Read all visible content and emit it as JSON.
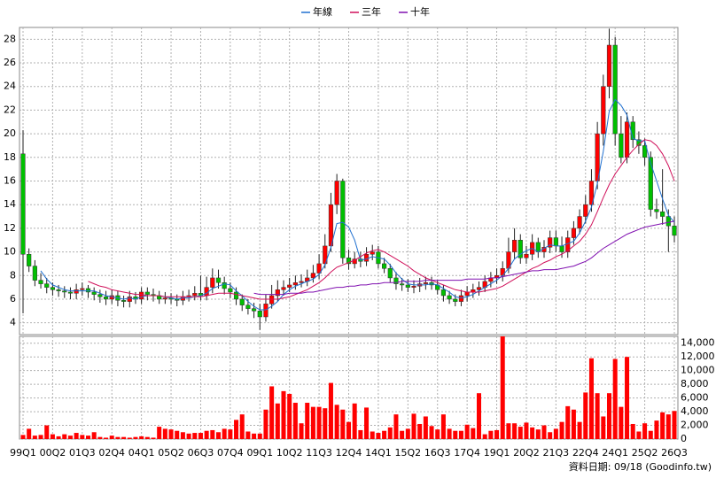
{
  "chart_data": {
    "type": "candlestick",
    "categories": [
      "99Q1",
      null,
      null,
      null,
      null,
      "00Q2",
      null,
      null,
      null,
      null,
      "01Q3",
      null,
      null,
      null,
      null,
      "02Q4",
      null,
      null,
      null,
      null,
      "04Q1",
      null,
      null,
      null,
      null,
      "05Q2",
      null,
      null,
      null,
      null,
      "06Q3",
      null,
      null,
      null,
      null,
      "07Q4",
      null,
      null,
      null,
      null,
      "09Q1",
      null,
      null,
      null,
      null,
      "10Q2",
      null,
      null,
      null,
      null,
      "11Q3",
      null,
      null,
      null,
      null,
      "12Q4",
      null,
      null,
      null,
      null,
      "14Q1",
      null,
      null,
      null,
      null,
      "15Q2",
      null,
      null,
      null,
      null,
      "16Q3",
      null,
      null,
      null,
      null,
      "17Q4",
      null,
      null,
      null,
      null,
      "19Q1",
      null,
      null,
      null,
      null,
      "20Q2",
      null,
      null,
      null,
      null,
      "21Q3",
      null,
      null,
      null,
      null,
      "22Q4",
      null,
      null,
      null,
      null,
      "24Q1",
      null,
      null,
      null,
      null,
      "25Q2",
      null,
      null,
      null,
      null,
      "26Q3"
    ],
    "open": [
      18.3,
      9.8,
      8.8,
      7.6,
      7.3,
      7.0,
      6.8,
      6.7,
      6.6,
      6.5,
      6.8,
      6.9,
      6.6,
      6.4,
      6.2,
      6.0,
      6.3,
      5.9,
      5.8,
      6.2,
      6.0,
      6.6,
      6.4,
      6.3,
      6.0,
      6.1,
      6.0,
      5.9,
      6.2,
      6.3,
      6.5,
      6.3,
      7.0,
      7.8,
      7.4,
      6.9,
      6.6,
      6.0,
      5.5,
      5.2,
      5.0,
      4.5,
      5.6,
      6.3,
      6.8,
      7.0,
      7.2,
      7.4,
      7.5,
      7.8,
      8.2,
      9.0,
      10.5,
      14.0,
      16.0,
      9.5,
      9.0,
      9.4,
      9.2,
      9.8,
      10.0,
      9.0,
      8.6,
      7.8,
      7.3,
      7.2,
      7.0,
      7.1,
      7.3,
      7.4,
      7.2,
      6.8,
      6.3,
      6.0,
      5.8,
      6.3,
      6.6,
      6.8,
      7.0,
      7.5,
      7.8,
      8.0,
      8.6,
      10.0,
      11.0,
      9.5,
      9.8,
      10.8,
      10.0,
      10.4,
      11.2,
      10.5,
      10.0,
      11.2,
      12.0,
      13.0,
      14.0,
      16.0,
      20.0,
      24.0,
      27.5,
      20.0,
      18.0,
      21.0,
      19.5,
      19.0,
      18.0,
      13.6,
      13.4,
      13.0,
      12.2
    ],
    "high": [
      20.3,
      10.3,
      9.3,
      8.2,
      7.8,
      7.4,
      7.2,
      7.1,
      7.0,
      7.3,
      7.4,
      7.2,
      7.0,
      6.8,
      6.7,
      6.8,
      6.7,
      6.3,
      6.7,
      6.6,
      7.0,
      7.0,
      6.9,
      6.7,
      6.6,
      6.5,
      6.4,
      6.7,
      6.8,
      7.1,
      8.0,
      7.9,
      8.6,
      8.5,
      7.9,
      7.4,
      7.0,
      6.4,
      6.0,
      5.7,
      5.6,
      6.4,
      7.2,
      7.6,
      7.6,
      7.8,
      8.0,
      8.1,
      8.5,
      8.9,
      9.8,
      11.5,
      15.0,
      16.6,
      16.2,
      10.2,
      10.0,
      10.0,
      10.4,
      10.6,
      10.5,
      9.5,
      9.0,
      8.3,
      7.8,
      7.7,
      7.6,
      7.8,
      7.9,
      7.9,
      7.6,
      7.2,
      6.7,
      6.4,
      6.8,
      7.1,
      7.3,
      7.5,
      8.0,
      8.3,
      8.6,
      9.2,
      11.2,
      12.0,
      11.5,
      10.5,
      11.5,
      11.2,
      11.0,
      11.8,
      11.8,
      11.3,
      11.8,
      12.6,
      13.6,
      14.8,
      17.0,
      21.0,
      25.0,
      28.9,
      28.2,
      21.5,
      21.8,
      21.5,
      20.2,
      19.6,
      18.5,
      14.5,
      17.0,
      13.6,
      13.0
    ],
    "low": [
      4.8,
      8.3,
      7.1,
      6.9,
      6.5,
      6.3,
      6.2,
      6.1,
      6.0,
      6.0,
      6.3,
      6.1,
      5.9,
      5.7,
      5.5,
      5.6,
      5.4,
      5.3,
      5.3,
      5.6,
      5.6,
      5.9,
      5.8,
      5.6,
      5.6,
      5.6,
      5.4,
      5.5,
      5.8,
      5.9,
      5.9,
      5.9,
      6.5,
      6.9,
      6.4,
      6.1,
      5.5,
      5.0,
      4.7,
      4.4,
      3.4,
      4.1,
      5.2,
      5.8,
      6.3,
      6.6,
      6.8,
      7.0,
      7.1,
      7.4,
      7.7,
      8.6,
      10.0,
      13.2,
      9.0,
      8.5,
      8.6,
      8.7,
      8.8,
      9.3,
      8.6,
      8.2,
      7.4,
      6.8,
      6.7,
      6.6,
      6.5,
      6.6,
      6.8,
      6.8,
      6.4,
      5.8,
      5.6,
      5.4,
      5.4,
      5.8,
      6.1,
      6.3,
      6.6,
      7.0,
      7.3,
      7.5,
      8.2,
      9.4,
      9.0,
      9.0,
      9.3,
      9.5,
      9.5,
      9.9,
      10.0,
      9.5,
      9.5,
      10.6,
      11.5,
      12.4,
      13.4,
      15.3,
      19.0,
      23.0,
      19.0,
      17.5,
      17.5,
      18.8,
      18.3,
      17.3,
      13.0,
      12.8,
      12.3,
      10.0,
      10.8
    ],
    "close": [
      9.8,
      8.8,
      7.6,
      7.3,
      7.0,
      6.8,
      6.7,
      6.6,
      6.5,
      6.8,
      6.9,
      6.6,
      6.4,
      6.2,
      6.0,
      6.3,
      5.9,
      5.8,
      6.2,
      6.0,
      6.6,
      6.4,
      6.3,
      6.0,
      6.1,
      6.0,
      5.9,
      6.2,
      6.3,
      6.5,
      6.3,
      7.0,
      7.8,
      7.4,
      6.9,
      6.6,
      6.0,
      5.5,
      5.2,
      5.0,
      4.5,
      5.6,
      6.3,
      6.8,
      7.0,
      7.2,
      7.4,
      7.5,
      7.8,
      8.2,
      9.0,
      10.5,
      14.0,
      16.0,
      9.5,
      9.0,
      9.4,
      9.2,
      9.8,
      10.0,
      9.0,
      8.6,
      7.8,
      7.3,
      7.2,
      7.0,
      7.1,
      7.3,
      7.4,
      7.2,
      6.8,
      6.3,
      6.0,
      5.8,
      6.3,
      6.6,
      6.8,
      7.0,
      7.5,
      7.8,
      8.0,
      8.6,
      10.0,
      11.0,
      9.5,
      9.8,
      10.8,
      10.0,
      10.4,
      11.2,
      10.5,
      10.0,
      11.2,
      12.0,
      13.0,
      14.0,
      16.0,
      20.0,
      24.0,
      27.5,
      20.0,
      18.0,
      21.0,
      19.5,
      19.0,
      18.0,
      13.6,
      13.4,
      13.0,
      12.2,
      11.4
    ],
    "up_color": "#ff0000",
    "down_color": "#00c000",
    "series": [
      {
        "name": "年線",
        "color": "#2070d0",
        "values": [
          null,
          null,
          null,
          8.4,
          7.7,
          7.2,
          7.0,
          6.8,
          6.7,
          6.7,
          6.7,
          6.7,
          6.7,
          6.5,
          6.3,
          6.2,
          6.1,
          6.0,
          6.1,
          6.0,
          6.2,
          6.3,
          6.3,
          6.3,
          6.2,
          6.1,
          6.0,
          6.1,
          6.1,
          6.2,
          6.3,
          6.5,
          6.9,
          7.1,
          7.3,
          7.2,
          6.7,
          6.3,
          5.8,
          5.4,
          5.1,
          5.1,
          5.4,
          5.8,
          6.4,
          6.8,
          7.1,
          7.3,
          7.5,
          7.7,
          8.1,
          8.9,
          10.4,
          12.4,
          12.5,
          12.1,
          11.0,
          9.3,
          9.4,
          9.6,
          9.5,
          9.4,
          8.9,
          8.2,
          7.7,
          7.3,
          7.2,
          7.2,
          7.2,
          7.3,
          7.2,
          6.9,
          6.6,
          6.2,
          6.1,
          6.2,
          6.4,
          6.7,
          7.0,
          7.3,
          7.6,
          8.0,
          8.6,
          9.4,
          9.8,
          10.1,
          10.3,
          10.0,
          10.3,
          10.6,
          10.5,
          10.5,
          10.7,
          10.9,
          11.6,
          12.6,
          13.8,
          15.8,
          18.5,
          21.9,
          22.9,
          22.4,
          21.6,
          19.6,
          19.4,
          19.4,
          17.5,
          16.0,
          14.5,
          13.1,
          12.5
        ]
      },
      {
        "name": "三年",
        "color": "#d0105a",
        "values": [
          null,
          null,
          null,
          null,
          null,
          null,
          null,
          null,
          null,
          null,
          null,
          7.5,
          7.3,
          7.1,
          7.0,
          6.8,
          6.7,
          6.6,
          6.5,
          6.4,
          6.4,
          6.3,
          6.3,
          6.3,
          6.2,
          6.2,
          6.2,
          6.2,
          6.2,
          6.2,
          6.2,
          6.3,
          6.4,
          6.5,
          6.5,
          6.5,
          6.4,
          6.3,
          6.2,
          6.1,
          6.0,
          6.0,
          6.0,
          6.0,
          6.1,
          6.2,
          6.4,
          6.6,
          6.8,
          7.1,
          7.4,
          7.8,
          8.3,
          8.7,
          8.9,
          9.1,
          9.3,
          9.6,
          9.9,
          10.1,
          10.2,
          10.0,
          9.7,
          9.4,
          9.1,
          8.8,
          8.4,
          8.1,
          7.8,
          7.6,
          7.4,
          7.2,
          7.0,
          6.8,
          6.7,
          6.6,
          6.6,
          6.6,
          6.7,
          6.8,
          6.9,
          7.1,
          7.4,
          7.7,
          8.0,
          8.3,
          8.6,
          8.8,
          9.1,
          9.3,
          9.6,
          9.8,
          10.1,
          10.5,
          10.9,
          11.5,
          12.3,
          13.4,
          14.6,
          15.7,
          16.6,
          17.3,
          18.0,
          18.6,
          19.1,
          19.5,
          19.4,
          19.0,
          18.3,
          17.3,
          16.0
        ]
      },
      {
        "name": "十年",
        "color": "#8010b0",
        "values": [
          null,
          null,
          null,
          null,
          null,
          null,
          null,
          null,
          null,
          null,
          null,
          null,
          null,
          null,
          null,
          null,
          null,
          null,
          null,
          null,
          null,
          null,
          null,
          null,
          null,
          null,
          null,
          null,
          null,
          null,
          null,
          null,
          null,
          null,
          null,
          null,
          null,
          null,
          null,
          6.5,
          6.4,
          6.4,
          6.4,
          6.4,
          6.4,
          6.5,
          6.5,
          6.5,
          6.6,
          6.6,
          6.7,
          6.8,
          6.9,
          7.0,
          7.0,
          7.1,
          7.1,
          7.2,
          7.2,
          7.3,
          7.3,
          7.4,
          7.4,
          7.4,
          7.5,
          7.5,
          7.5,
          7.5,
          7.6,
          7.6,
          7.6,
          7.6,
          7.6,
          7.6,
          7.6,
          7.7,
          7.7,
          7.7,
          7.7,
          7.8,
          7.8,
          7.9,
          8.0,
          8.1,
          8.2,
          8.3,
          8.4,
          8.4,
          8.5,
          8.5,
          8.5,
          8.6,
          8.7,
          8.8,
          9.0,
          9.2,
          9.5,
          9.9,
          10.3,
          10.6,
          10.9,
          11.2,
          11.5,
          11.7,
          11.9,
          12.1,
          12.2,
          12.3,
          12.4,
          12.5,
          12.6
        ]
      }
    ],
    "ylim": [
      3,
      29
    ],
    "yticks": [
      4,
      6,
      8,
      10,
      12,
      14,
      16,
      18,
      20,
      22,
      24,
      26,
      28
    ],
    "grid": true,
    "legend": "top",
    "volume": {
      "color": "#ff0000",
      "values": [
        600,
        1500,
        500,
        600,
        2000,
        700,
        400,
        700,
        500,
        900,
        600,
        500,
        1000,
        300,
        200,
        500,
        300,
        300,
        200,
        300,
        400,
        300,
        200,
        1800,
        1500,
        1400,
        1200,
        1000,
        800,
        900,
        900,
        1200,
        1300,
        1000,
        1500,
        1400,
        2800,
        3600,
        1100,
        800,
        800,
        4300,
        7700,
        5200,
        7000,
        6600,
        5300,
        2300,
        5300,
        4700,
        4700,
        4500,
        8200,
        5000,
        4300,
        2500,
        5200,
        1300,
        4600,
        1100,
        900,
        1200,
        1700,
        3600,
        1200,
        1500,
        3700,
        2200,
        3300,
        1900,
        1400,
        3600,
        1500,
        1200,
        1200,
        2100,
        1600,
        6700,
        700,
        1200,
        1300,
        15000,
        2300,
        2300,
        1800,
        2400,
        1700,
        1400,
        2000,
        1000,
        1500,
        2500,
        4800,
        4300,
        2500,
        6800,
        11800,
        6700,
        3300,
        6700,
        11700,
        4700,
        12000,
        2200,
        1100,
        2300,
        1200,
        2700,
        3900,
        3600,
        4100
      ],
      "ylim": [
        0,
        15000
      ],
      "yticks": [
        0,
        {
          "value": 2000,
          "label": "2,000"
        },
        {
          "value": 4000,
          "label": "4,000"
        },
        {
          "value": 6000,
          "label": "6,000"
        },
        {
          "value": 8000,
          "label": "8,000"
        },
        {
          "value": 10000,
          "label": "10,000"
        },
        {
          "value": 12000,
          "label": "12,000"
        },
        {
          "value": 14000,
          "label": "14,000"
        }
      ]
    },
    "footnote": "資料日期: 09/18 (Goodinfo.tw)"
  }
}
